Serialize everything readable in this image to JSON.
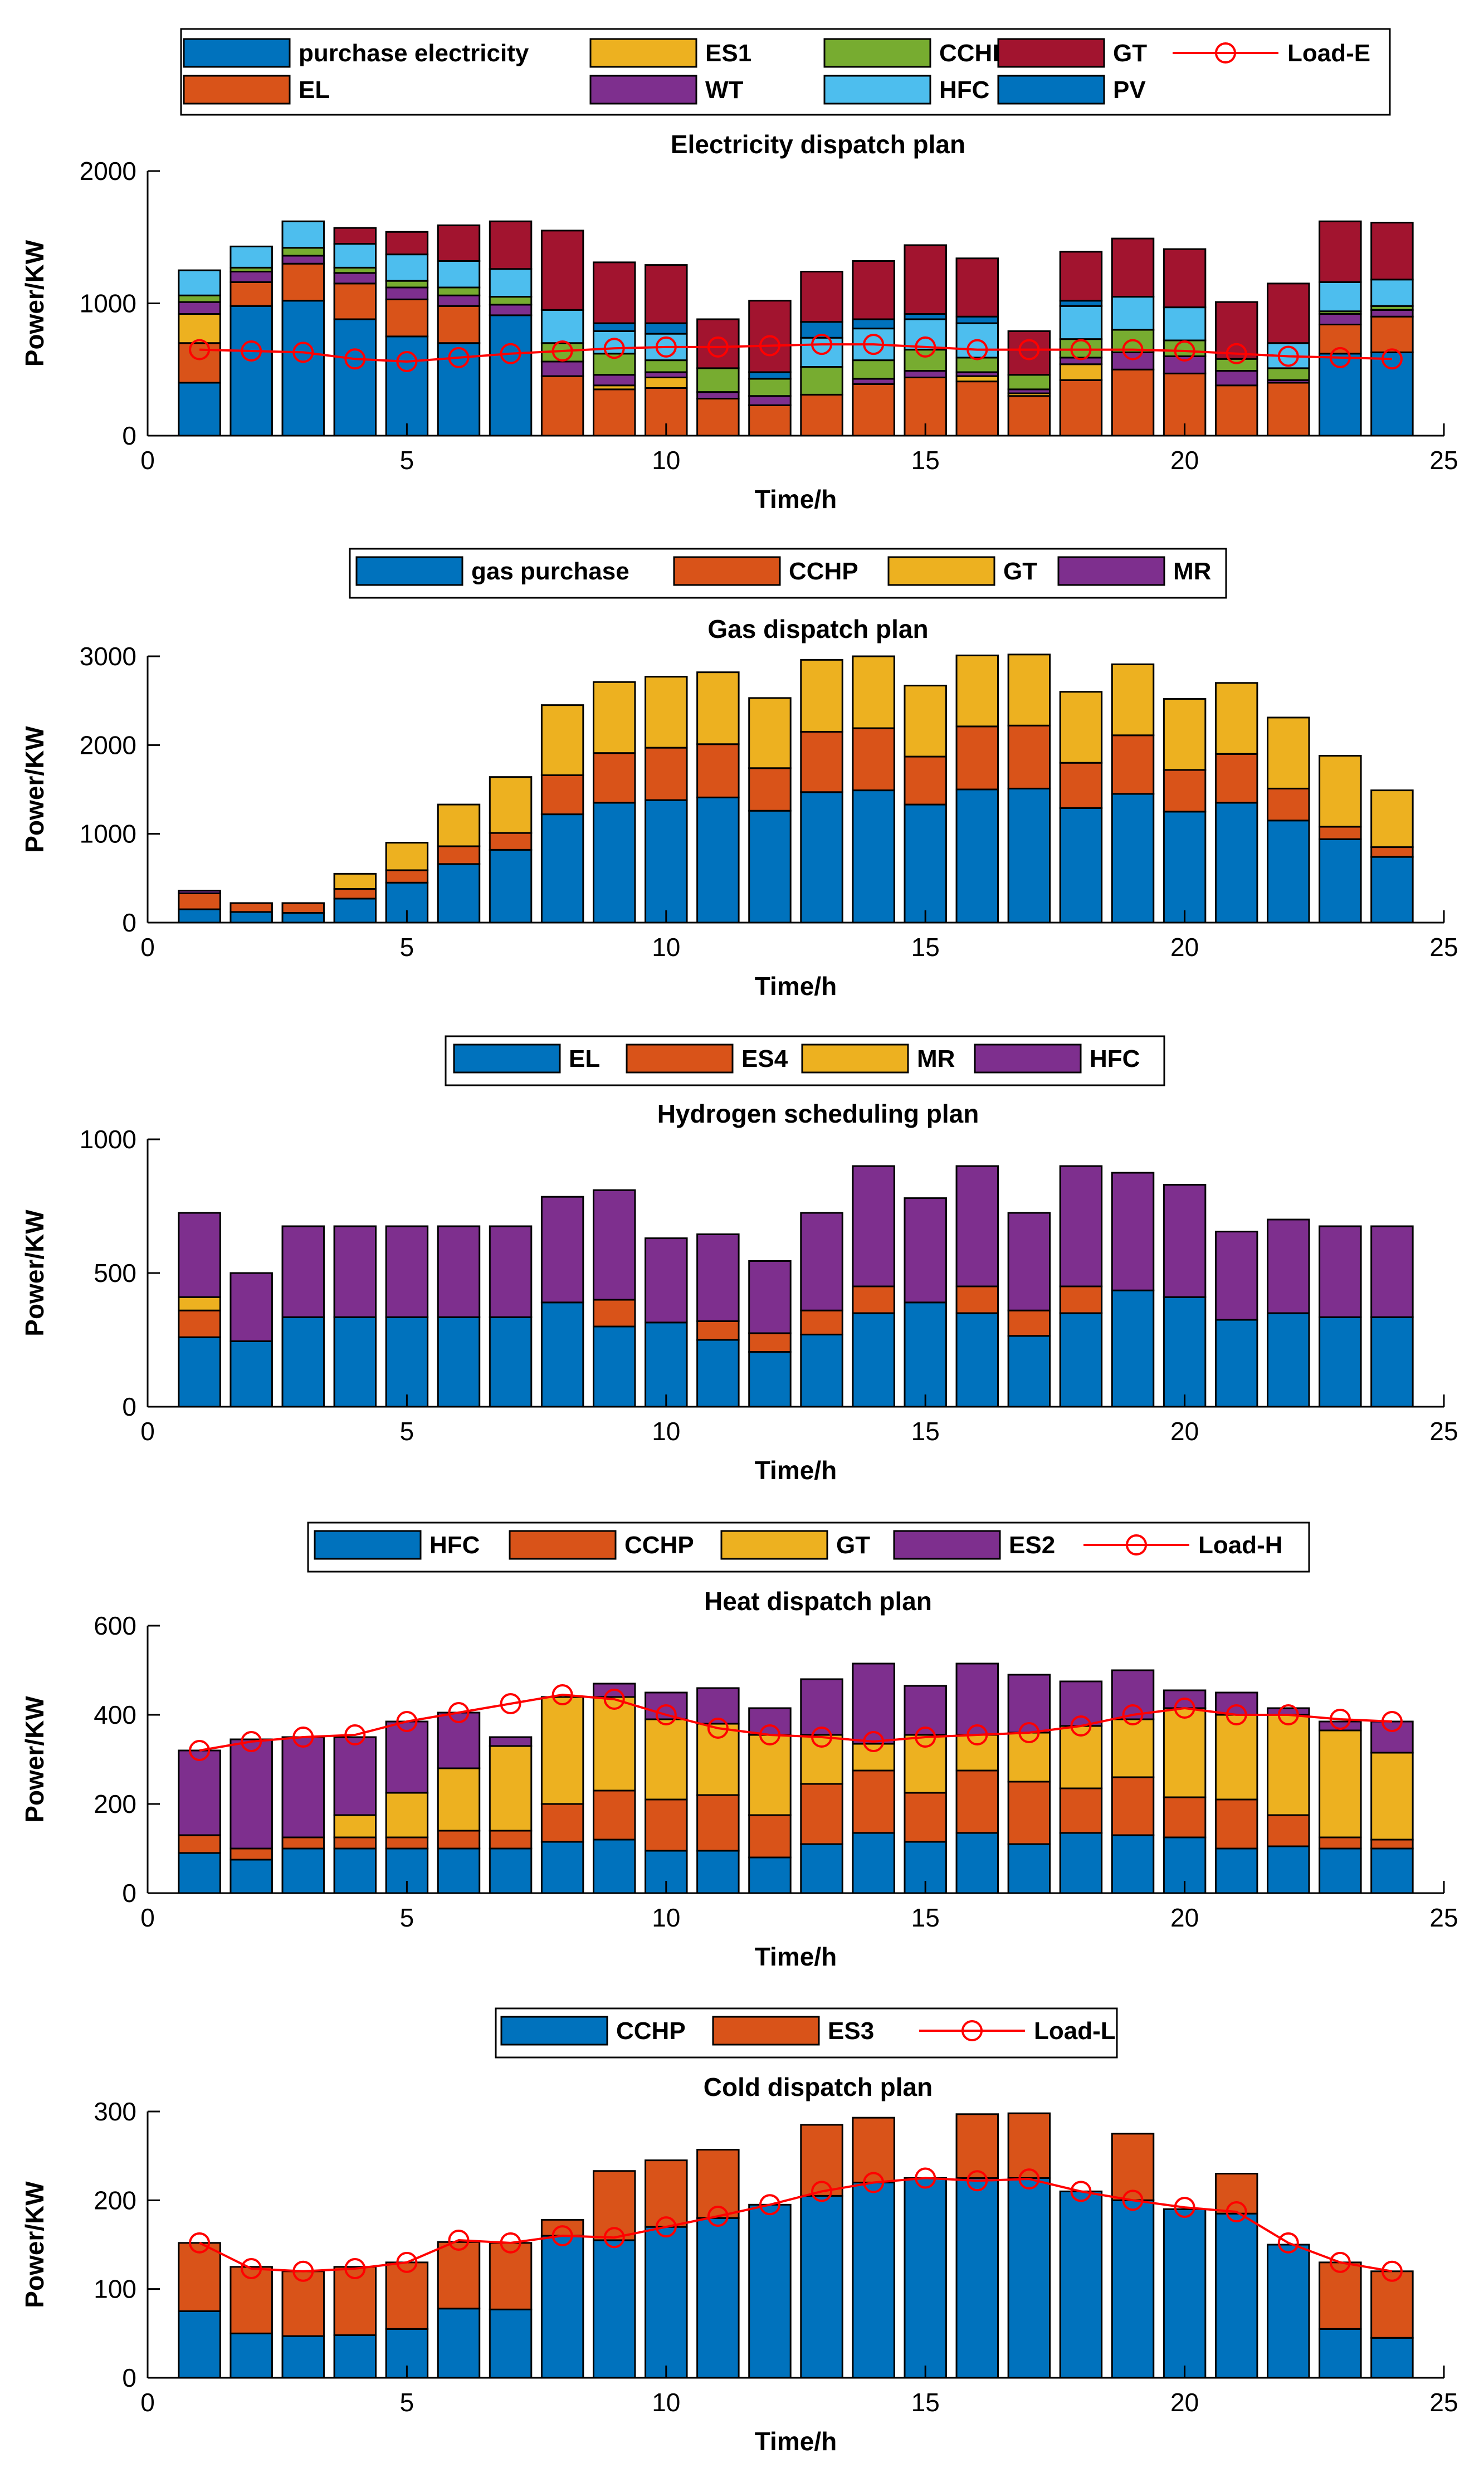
{
  "chart_data": [
    {
      "type": "bar",
      "stacked": true,
      "title": "Electricity dispatch plan",
      "xlabel": "Time/h",
      "ylabel": "Power/KW",
      "xlim": [
        0,
        25
      ],
      "ylim": [
        0,
        2000
      ],
      "xticks": [
        "0",
        "5",
        "10",
        "15",
        "20",
        "25"
      ],
      "yticks": [
        "0",
        "1000",
        "2000"
      ],
      "x": [
        1,
        2,
        3,
        4,
        5,
        6,
        7,
        8,
        9,
        10,
        11,
        12,
        13,
        14,
        15,
        16,
        17,
        18,
        19,
        20,
        21,
        22,
        23,
        24
      ],
      "legend_position": "top",
      "legend_columns": 5,
      "legend_order": [
        "purchase electricity",
        "ES1",
        "CCHP",
        "GT",
        "Load-E",
        "EL",
        "WT",
        "HFC",
        "PV"
      ],
      "series": [
        {
          "name": "purchase electricity",
          "color": "#0072BD",
          "values": [
            400,
            980,
            1020,
            880,
            750,
            700,
            910,
            0,
            0,
            0,
            0,
            0,
            0,
            0,
            0,
            0,
            0,
            0,
            0,
            0,
            0,
            0,
            620,
            630
          ]
        },
        {
          "name": "EL",
          "color": "#D95319",
          "values": [
            300,
            180,
            280,
            270,
            280,
            280,
            0,
            450,
            350,
            360,
            280,
            230,
            310,
            390,
            440,
            410,
            300,
            420,
            500,
            470,
            380,
            400,
            220,
            270
          ]
        },
        {
          "name": "ES1",
          "color": "#EDB120",
          "values": [
            220,
            0,
            0,
            0,
            0,
            0,
            0,
            0,
            30,
            80,
            0,
            0,
            0,
            0,
            0,
            40,
            20,
            120,
            0,
            0,
            0,
            0,
            0,
            0
          ]
        },
        {
          "name": "WT",
          "color": "#7E2F8E",
          "values": [
            90,
            80,
            60,
            80,
            90,
            80,
            80,
            110,
            80,
            40,
            50,
            70,
            0,
            40,
            50,
            30,
            30,
            50,
            130,
            130,
            110,
            20,
            80,
            50
          ]
        },
        {
          "name": "CCHP",
          "color": "#77AC30",
          "values": [
            50,
            30,
            60,
            40,
            50,
            60,
            60,
            140,
            160,
            90,
            180,
            130,
            210,
            140,
            160,
            110,
            110,
            140,
            170,
            120,
            90,
            90,
            20,
            30
          ]
        },
        {
          "name": "HFC",
          "color": "#4DBEEE",
          "values": [
            190,
            160,
            200,
            180,
            200,
            200,
            210,
            250,
            170,
            200,
            0,
            0,
            220,
            240,
            230,
            260,
            0,
            250,
            250,
            250,
            0,
            190,
            220,
            200
          ]
        },
        {
          "name": "PV",
          "color": "#0072BD",
          "values": [
            0,
            0,
            0,
            0,
            0,
            0,
            0,
            0,
            60,
            80,
            0,
            50,
            120,
            70,
            40,
            50,
            0,
            40,
            0,
            0,
            0,
            0,
            0,
            0
          ]
        },
        {
          "name": "GT",
          "color": "#A2142F",
          "values": [
            0,
            0,
            0,
            120,
            170,
            270,
            360,
            600,
            460,
            440,
            370,
            540,
            380,
            440,
            520,
            440,
            330,
            370,
            440,
            440,
            430,
            450,
            460,
            430
          ]
        }
      ],
      "line": {
        "name": "Load-E",
        "color": "#FF0000",
        "values": [
          650,
          640,
          630,
          580,
          560,
          590,
          620,
          640,
          660,
          670,
          670,
          680,
          690,
          690,
          670,
          650,
          650,
          650,
          650,
          640,
          620,
          600,
          590,
          580
        ]
      }
    },
    {
      "type": "bar",
      "stacked": true,
      "title": "Gas dispatch plan",
      "xlabel": "Time/h",
      "ylabel": "Power/KW",
      "xlim": [
        0,
        25
      ],
      "ylim": [
        0,
        3000
      ],
      "xticks": [
        "0",
        "5",
        "10",
        "15",
        "20",
        "25"
      ],
      "yticks": [
        "0",
        "1000",
        "2000",
        "3000"
      ],
      "x": [
        1,
        2,
        3,
        4,
        5,
        6,
        7,
        8,
        9,
        10,
        11,
        12,
        13,
        14,
        15,
        16,
        17,
        18,
        19,
        20,
        21,
        22,
        23,
        24
      ],
      "legend_position": "top",
      "legend_columns": 4,
      "legend_order": [
        "gas purchase",
        "CCHP",
        "GT",
        "MR"
      ],
      "series": [
        {
          "name": "gas purchase",
          "color": "#0072BD",
          "values": [
            150,
            120,
            110,
            270,
            450,
            660,
            820,
            1220,
            1350,
            1380,
            1410,
            1260,
            1470,
            1490,
            1330,
            1500,
            1510,
            1290,
            1450,
            1250,
            1350,
            1150,
            940,
            740
          ]
        },
        {
          "name": "CCHP",
          "color": "#D95319",
          "values": [
            180,
            100,
            110,
            110,
            140,
            200,
            190,
            440,
            560,
            590,
            600,
            480,
            680,
            700,
            540,
            710,
            710,
            510,
            660,
            470,
            550,
            360,
            140,
            110
          ]
        },
        {
          "name": "GT",
          "color": "#EDB120",
          "values": [
            0,
            0,
            0,
            170,
            310,
            470,
            630,
            790,
            800,
            800,
            810,
            790,
            810,
            810,
            800,
            800,
            800,
            800,
            800,
            800,
            800,
            800,
            800,
            640
          ]
        },
        {
          "name": "MR",
          "color": "#7E2F8E",
          "values": [
            30,
            0,
            0,
            0,
            0,
            0,
            0,
            0,
            0,
            0,
            0,
            0,
            0,
            0,
            0,
            0,
            0,
            0,
            0,
            0,
            0,
            0,
            0,
            0
          ]
        }
      ]
    },
    {
      "type": "bar",
      "stacked": true,
      "title": "Hydrogen scheduling plan",
      "xlabel": "Time/h",
      "ylabel": "Power/KW",
      "xlim": [
        0,
        25
      ],
      "ylim": [
        0,
        1000
      ],
      "xticks": [
        "0",
        "5",
        "10",
        "15",
        "20",
        "25"
      ],
      "yticks": [
        "0",
        "500",
        "1000"
      ],
      "x": [
        1,
        2,
        3,
        4,
        5,
        6,
        7,
        8,
        9,
        10,
        11,
        12,
        13,
        14,
        15,
        16,
        17,
        18,
        19,
        20,
        21,
        22,
        23,
        24
      ],
      "legend_position": "top",
      "legend_columns": 4,
      "legend_order": [
        "EL",
        "ES4",
        "MR",
        "HFC"
      ],
      "series": [
        {
          "name": "EL",
          "color": "#0072BD",
          "values": [
            260,
            245,
            335,
            335,
            335,
            335,
            335,
            390,
            300,
            315,
            250,
            205,
            270,
            350,
            390,
            350,
            265,
            350,
            435,
            410,
            325,
            350,
            335,
            335
          ]
        },
        {
          "name": "ES4",
          "color": "#D95319",
          "values": [
            100,
            0,
            0,
            0,
            0,
            0,
            0,
            0,
            100,
            0,
            70,
            70,
            90,
            100,
            0,
            100,
            95,
            100,
            0,
            0,
            0,
            0,
            0,
            0
          ]
        },
        {
          "name": "MR",
          "color": "#EDB120",
          "values": [
            50,
            0,
            0,
            0,
            0,
            0,
            0,
            0,
            0,
            0,
            0,
            0,
            0,
            0,
            0,
            0,
            0,
            0,
            0,
            0,
            0,
            0,
            0,
            0
          ]
        },
        {
          "name": "HFC",
          "color": "#7E2F8E",
          "values": [
            315,
            255,
            340,
            340,
            340,
            340,
            340,
            395,
            410,
            315,
            325,
            270,
            365,
            450,
            390,
            450,
            365,
            450,
            440,
            420,
            330,
            350,
            340,
            340
          ]
        }
      ]
    },
    {
      "type": "bar",
      "stacked": true,
      "title": "Heat dispatch plan",
      "xlabel": "Time/h",
      "ylabel": "Power/KW",
      "xlim": [
        0,
        25
      ],
      "ylim": [
        0,
        600
      ],
      "xticks": [
        "0",
        "5",
        "10",
        "15",
        "20",
        "25"
      ],
      "yticks": [
        "0",
        "200",
        "400",
        "600"
      ],
      "x": [
        1,
        2,
        3,
        4,
        5,
        6,
        7,
        8,
        9,
        10,
        11,
        12,
        13,
        14,
        15,
        16,
        17,
        18,
        19,
        20,
        21,
        22,
        23,
        24
      ],
      "legend_position": "top",
      "legend_columns": 5,
      "legend_order": [
        "HFC",
        "CCHP",
        "GT",
        "ES2",
        "Load-H"
      ],
      "series": [
        {
          "name": "HFC",
          "color": "#0072BD",
          "values": [
            90,
            75,
            100,
            100,
            100,
            100,
            100,
            115,
            120,
            95,
            95,
            80,
            110,
            135,
            115,
            135,
            110,
            135,
            130,
            125,
            100,
            105,
            100,
            100
          ]
        },
        {
          "name": "CCHP",
          "color": "#D95319",
          "values": [
            40,
            25,
            25,
            25,
            25,
            40,
            40,
            85,
            110,
            115,
            125,
            95,
            135,
            140,
            110,
            140,
            140,
            100,
            130,
            90,
            110,
            70,
            25,
            20
          ]
        },
        {
          "name": "GT",
          "color": "#EDB120",
          "values": [
            0,
            0,
            0,
            50,
            100,
            140,
            190,
            240,
            210,
            180,
            160,
            180,
            110,
            60,
            130,
            80,
            110,
            140,
            130,
            200,
            190,
            225,
            240,
            195
          ]
        },
        {
          "name": "ES2",
          "color": "#7E2F8E",
          "values": [
            190,
            245,
            225,
            175,
            160,
            125,
            20,
            0,
            30,
            60,
            80,
            60,
            125,
            180,
            110,
            160,
            130,
            100,
            110,
            40,
            50,
            15,
            20,
            70
          ]
        }
      ],
      "line": {
        "name": "Load-H",
        "color": "#FF0000",
        "values": [
          320,
          340,
          350,
          355,
          385,
          405,
          425,
          445,
          435,
          400,
          370,
          355,
          350,
          340,
          350,
          355,
          360,
          375,
          400,
          415,
          400,
          400,
          390,
          385
        ]
      }
    },
    {
      "type": "bar",
      "stacked": true,
      "title": "Cold dispatch plan",
      "xlabel": "Time/h",
      "ylabel": "Power/KW",
      "xlim": [
        0,
        25
      ],
      "ylim": [
        0,
        300
      ],
      "xticks": [
        "0",
        "5",
        "10",
        "15",
        "20",
        "25"
      ],
      "yticks": [
        "0",
        "100",
        "200",
        "300"
      ],
      "x": [
        1,
        2,
        3,
        4,
        5,
        6,
        7,
        8,
        9,
        10,
        11,
        12,
        13,
        14,
        15,
        16,
        17,
        18,
        19,
        20,
        21,
        22,
        23,
        24
      ],
      "legend_position": "top",
      "legend_columns": 3,
      "legend_order": [
        "CCHP",
        "ES3",
        "Load-L"
      ],
      "series": [
        {
          "name": "CCHP",
          "color": "#0072BD",
          "values": [
            75,
            50,
            47,
            48,
            55,
            78,
            77,
            160,
            155,
            170,
            180,
            195,
            205,
            220,
            225,
            225,
            225,
            210,
            200,
            190,
            185,
            150,
            55,
            45
          ]
        },
        {
          "name": "ES3",
          "color": "#D95319",
          "values": [
            77,
            75,
            73,
            77,
            75,
            75,
            75,
            18,
            78,
            75,
            77,
            0,
            80,
            73,
            0,
            72,
            73,
            0,
            75,
            0,
            45,
            0,
            75,
            75
          ]
        }
      ],
      "line": {
        "name": "Load-L",
        "color": "#FF0000",
        "values": [
          152,
          123,
          120,
          123,
          130,
          155,
          152,
          160,
          158,
          170,
          182,
          195,
          210,
          220,
          225,
          222,
          224,
          210,
          200,
          192,
          187,
          152,
          130,
          120
        ]
      }
    }
  ]
}
